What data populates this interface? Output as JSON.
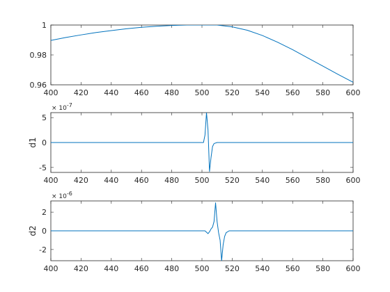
{
  "chart_data": [
    {
      "type": "line",
      "title": "",
      "xlabel": "",
      "ylabel": "",
      "exponent_label": "",
      "xlim": [
        400,
        600
      ],
      "ylim": [
        0.96,
        1.0
      ],
      "xticks": [
        400,
        420,
        440,
        460,
        480,
        500,
        520,
        540,
        560,
        580,
        600
      ],
      "xtick_labels": [
        "400",
        "420",
        "440",
        "460",
        "480",
        "500",
        "520",
        "540",
        "560",
        "580",
        "600"
      ],
      "yticks": [
        0.96,
        0.98,
        1.0
      ],
      "ytick_labels": [
        "0.96",
        "0.98",
        "1"
      ],
      "grid": false,
      "color": "#0072BD",
      "series": [
        {
          "x": [
            400,
            410,
            420,
            430,
            440,
            450,
            460,
            470,
            480,
            490,
            500,
            510,
            520,
            530,
            540,
            550,
            560,
            570,
            580,
            590,
            600
          ],
          "y": [
            0.9897,
            0.9917,
            0.9934,
            0.995,
            0.9963,
            0.9975,
            0.9985,
            0.9992,
            0.9997,
            1.0,
            1.0,
            1.0,
            0.9988,
            0.9965,
            0.993,
            0.9885,
            0.9835,
            0.978,
            0.9725,
            0.967,
            0.9617
          ]
        }
      ]
    },
    {
      "type": "line",
      "title": "",
      "xlabel": "",
      "ylabel": "d1",
      "exponent_label": "× 10^-7",
      "xlim": [
        400,
        600
      ],
      "ylim": [
        -6,
        6
      ],
      "xticks": [
        400,
        420,
        440,
        460,
        480,
        500,
        520,
        540,
        560,
        580,
        600
      ],
      "xtick_labels": [
        "400",
        "420",
        "440",
        "460",
        "480",
        "500",
        "520",
        "540",
        "560",
        "580",
        "600"
      ],
      "yticks": [
        -5,
        0,
        5
      ],
      "ytick_labels": [
        "-5",
        "0",
        "5"
      ],
      "grid": false,
      "color": "#0072BD",
      "series": [
        {
          "x": [
            400,
            500,
            501,
            502,
            503,
            504,
            505,
            506,
            507,
            508,
            510,
            600
          ],
          "y": [
            0,
            0,
            0,
            1.5,
            6,
            2.5,
            -5.8,
            -3,
            -0.8,
            -0.2,
            0,
            0
          ]
        }
      ]
    },
    {
      "type": "line",
      "title": "",
      "xlabel": "",
      "ylabel": "d2",
      "exponent_label": "× 10^-6",
      "xlim": [
        400,
        600
      ],
      "ylim": [
        -3.2,
        3.2
      ],
      "xticks": [
        400,
        420,
        440,
        460,
        480,
        500,
        520,
        540,
        560,
        580,
        600
      ],
      "xtick_labels": [
        "400",
        "420",
        "440",
        "460",
        "480",
        "500",
        "520",
        "540",
        "560",
        "580",
        "600"
      ],
      "yticks": [
        -2,
        0,
        2
      ],
      "ytick_labels": [
        "-2",
        "0",
        "2"
      ],
      "grid": false,
      "color": "#0072BD",
      "series": [
        {
          "x": [
            400,
            502,
            503,
            504,
            505,
            506,
            507,
            508,
            509,
            510,
            511,
            512,
            513,
            514,
            515,
            516,
            518,
            600
          ],
          "y": [
            0,
            0,
            -0.15,
            -0.3,
            -0.1,
            0.2,
            0.4,
            1.0,
            3.0,
            1.0,
            -0.2,
            -1.0,
            -3.2,
            -1.5,
            -0.6,
            -0.2,
            0,
            0
          ]
        }
      ]
    }
  ]
}
